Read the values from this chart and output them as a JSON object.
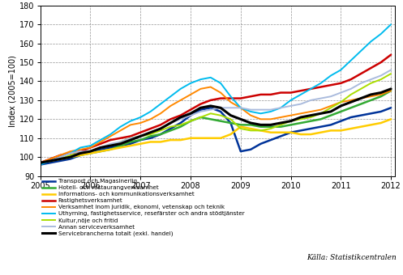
{
  "ylabel": "Index (2005=100)",
  "xlim": [
    2005,
    2012.08
  ],
  "ylim": [
    90,
    180
  ],
  "yticks": [
    90,
    100,
    110,
    120,
    130,
    140,
    150,
    160,
    170,
    180
  ],
  "xticks": [
    2005,
    2006,
    2007,
    2008,
    2009,
    2010,
    2011,
    2012
  ],
  "source_text": "Källa: Statistikcentralen",
  "series": {
    "Transport och Magasinerlig": {
      "color": "#003399",
      "lw": 1.8,
      "x": [
        2005.0,
        2005.2,
        2005.4,
        2005.6,
        2005.8,
        2006.0,
        2006.2,
        2006.4,
        2006.6,
        2006.8,
        2007.0,
        2007.2,
        2007.4,
        2007.6,
        2007.8,
        2008.0,
        2008.2,
        2008.4,
        2008.6,
        2008.8,
        2009.0,
        2009.2,
        2009.4,
        2009.6,
        2009.8,
        2010.0,
        2010.2,
        2010.4,
        2010.6,
        2010.8,
        2011.0,
        2011.2,
        2011.4,
        2011.6,
        2011.8,
        2012.0
      ],
      "y": [
        96,
        97,
        98,
        99,
        101,
        103,
        104,
        105,
        106,
        107,
        109,
        110,
        112,
        115,
        118,
        122,
        125,
        126,
        124,
        118,
        103,
        104,
        107,
        109,
        111,
        113,
        114,
        115,
        116,
        117,
        119,
        121,
        122,
        123,
        124,
        126
      ]
    },
    "Hotell- och restaurangverksamhet": {
      "color": "#33aa33",
      "lw": 1.8,
      "x": [
        2005.0,
        2005.2,
        2005.4,
        2005.6,
        2005.8,
        2006.0,
        2006.2,
        2006.4,
        2006.6,
        2006.8,
        2007.0,
        2007.2,
        2007.4,
        2007.6,
        2007.8,
        2008.0,
        2008.2,
        2008.4,
        2008.6,
        2008.8,
        2009.0,
        2009.2,
        2009.4,
        2009.6,
        2009.8,
        2010.0,
        2010.2,
        2010.4,
        2010.6,
        2010.8,
        2011.0,
        2011.2,
        2011.4,
        2011.6,
        2011.8,
        2012.0
      ],
      "y": [
        97,
        98,
        99,
        100,
        101,
        102,
        103,
        104,
        106,
        108,
        109,
        111,
        112,
        114,
        116,
        119,
        121,
        120,
        119,
        118,
        117,
        117,
        116,
        116,
        116,
        117,
        118,
        119,
        120,
        122,
        124,
        126,
        128,
        130,
        132,
        135
      ]
    },
    "Informations- och kommunikationsverksamhet": {
      "color": "#ffcc00",
      "lw": 1.8,
      "x": [
        2005.0,
        2005.2,
        2005.4,
        2005.6,
        2005.8,
        2006.0,
        2006.2,
        2006.4,
        2006.6,
        2006.8,
        2007.0,
        2007.2,
        2007.4,
        2007.6,
        2007.8,
        2008.0,
        2008.2,
        2008.4,
        2008.6,
        2008.8,
        2009.0,
        2009.2,
        2009.4,
        2009.6,
        2009.8,
        2010.0,
        2010.2,
        2010.4,
        2010.6,
        2010.8,
        2011.0,
        2011.2,
        2011.4,
        2011.6,
        2011.8,
        2012.0
      ],
      "y": [
        97,
        98,
        99,
        100,
        101,
        102,
        103,
        104,
        105,
        106,
        107,
        108,
        108,
        109,
        109,
        110,
        110,
        110,
        110,
        112,
        116,
        115,
        114,
        113,
        113,
        113,
        112,
        112,
        113,
        114,
        114,
        115,
        116,
        117,
        118,
        120
      ]
    },
    "Fastighetsverksamhet": {
      "color": "#cc0000",
      "lw": 1.8,
      "x": [
        2005.0,
        2005.2,
        2005.4,
        2005.6,
        2005.8,
        2006.0,
        2006.2,
        2006.4,
        2006.6,
        2006.8,
        2007.0,
        2007.2,
        2007.4,
        2007.6,
        2007.8,
        2008.0,
        2008.2,
        2008.4,
        2008.6,
        2008.8,
        2009.0,
        2009.2,
        2009.4,
        2009.6,
        2009.8,
        2010.0,
        2010.2,
        2010.4,
        2010.6,
        2010.8,
        2011.0,
        2011.2,
        2011.4,
        2011.6,
        2011.8,
        2012.0
      ],
      "y": [
        97,
        99,
        101,
        102,
        103,
        105,
        107,
        109,
        110,
        111,
        113,
        115,
        117,
        120,
        122,
        125,
        128,
        130,
        131,
        131,
        131,
        132,
        133,
        133,
        134,
        134,
        135,
        136,
        137,
        138,
        139,
        141,
        144,
        147,
        150,
        154
      ]
    },
    "Verksamhet inom juridik, ekonomi, vetenskap och teknik": {
      "color": "#ff8800",
      "lw": 1.4,
      "x": [
        2005.0,
        2005.2,
        2005.4,
        2005.6,
        2005.8,
        2006.0,
        2006.2,
        2006.4,
        2006.6,
        2006.8,
        2007.0,
        2007.2,
        2007.4,
        2007.6,
        2007.8,
        2008.0,
        2008.2,
        2008.4,
        2008.6,
        2008.8,
        2009.0,
        2009.2,
        2009.4,
        2009.6,
        2009.8,
        2010.0,
        2010.2,
        2010.4,
        2010.6,
        2010.8,
        2011.0,
        2011.2,
        2011.4,
        2011.6,
        2011.8,
        2012.0
      ],
      "y": [
        97,
        99,
        101,
        103,
        104,
        105,
        108,
        111,
        114,
        117,
        118,
        120,
        123,
        127,
        130,
        133,
        136,
        137,
        134,
        129,
        126,
        122,
        120,
        120,
        121,
        122,
        123,
        124,
        125,
        127,
        129,
        130,
        131,
        132,
        133,
        135
      ]
    },
    "Uthyrning, fastighetsservice, resefärster och andra stödtjänster": {
      "color": "#00bbee",
      "lw": 1.4,
      "x": [
        2005.0,
        2005.2,
        2005.4,
        2005.6,
        2005.8,
        2006.0,
        2006.2,
        2006.4,
        2006.6,
        2006.8,
        2007.0,
        2007.2,
        2007.4,
        2007.6,
        2007.8,
        2008.0,
        2008.2,
        2008.4,
        2008.6,
        2008.8,
        2009.0,
        2009.2,
        2009.4,
        2009.6,
        2009.8,
        2010.0,
        2010.2,
        2010.4,
        2010.6,
        2010.8,
        2011.0,
        2011.2,
        2011.4,
        2011.6,
        2011.8,
        2012.0
      ],
      "y": [
        96,
        98,
        100,
        102,
        105,
        106,
        109,
        112,
        116,
        119,
        121,
        124,
        128,
        132,
        136,
        139,
        141,
        142,
        139,
        132,
        126,
        124,
        123,
        124,
        126,
        130,
        133,
        136,
        139,
        143,
        146,
        151,
        156,
        161,
        165,
        170
      ]
    },
    "Kultur,nöje och fritid": {
      "color": "#aadd00",
      "lw": 1.4,
      "x": [
        2005.0,
        2005.2,
        2005.4,
        2005.6,
        2005.8,
        2006.0,
        2006.2,
        2006.4,
        2006.6,
        2006.8,
        2007.0,
        2007.2,
        2007.4,
        2007.6,
        2007.8,
        2008.0,
        2008.2,
        2008.4,
        2008.6,
        2008.8,
        2009.0,
        2009.2,
        2009.4,
        2009.6,
        2009.8,
        2010.0,
        2010.2,
        2010.4,
        2010.6,
        2010.8,
        2011.0,
        2011.2,
        2011.4,
        2011.6,
        2011.8,
        2012.0
      ],
      "y": [
        97,
        98,
        99,
        101,
        102,
        103,
        105,
        106,
        108,
        110,
        111,
        112,
        114,
        116,
        117,
        119,
        121,
        123,
        122,
        120,
        115,
        114,
        114,
        115,
        117,
        119,
        120,
        121,
        123,
        126,
        129,
        133,
        136,
        139,
        141,
        144
      ]
    },
    "Annan serviceverksamhet": {
      "color": "#aabbdd",
      "lw": 1.4,
      "x": [
        2005.0,
        2005.2,
        2005.4,
        2005.6,
        2005.8,
        2006.0,
        2006.2,
        2006.4,
        2006.6,
        2006.8,
        2007.0,
        2007.2,
        2007.4,
        2007.6,
        2007.8,
        2008.0,
        2008.2,
        2008.4,
        2008.6,
        2008.8,
        2009.0,
        2009.2,
        2009.4,
        2009.6,
        2009.8,
        2010.0,
        2010.2,
        2010.4,
        2010.6,
        2010.8,
        2011.0,
        2011.2,
        2011.4,
        2011.6,
        2011.8,
        2012.0
      ],
      "y": [
        97,
        98,
        100,
        102,
        103,
        103,
        105,
        107,
        108,
        110,
        111,
        113,
        115,
        118,
        120,
        122,
        124,
        125,
        126,
        126,
        126,
        125,
        125,
        125,
        126,
        127,
        128,
        130,
        131,
        132,
        134,
        136,
        139,
        141,
        143,
        146
      ]
    },
    "Servicebrancherna totalt (exkl. handel)": {
      "color": "#000000",
      "lw": 2.2,
      "x": [
        2005.0,
        2005.2,
        2005.4,
        2005.6,
        2005.8,
        2006.0,
        2006.2,
        2006.4,
        2006.6,
        2006.8,
        2007.0,
        2007.2,
        2007.4,
        2007.6,
        2007.8,
        2008.0,
        2008.2,
        2008.4,
        2008.6,
        2008.8,
        2009.0,
        2009.2,
        2009.4,
        2009.6,
        2009.8,
        2010.0,
        2010.2,
        2010.4,
        2010.6,
        2010.8,
        2011.0,
        2011.2,
        2011.4,
        2011.6,
        2011.8,
        2012.0
      ],
      "y": [
        97,
        98,
        99,
        100,
        102,
        103,
        105,
        106,
        107,
        109,
        111,
        113,
        115,
        118,
        121,
        123,
        126,
        127,
        126,
        122,
        120,
        118,
        117,
        117,
        118,
        119,
        121,
        122,
        123,
        124,
        127,
        129,
        131,
        133,
        134,
        136
      ]
    }
  },
  "legend_order": [
    "Transport och Magasinerlig",
    "Hotell- och restaurangverksamhet",
    "Informations- och kommunikationsverksamhet",
    "Fastighetsverksamhet",
    "Verksamhet inom juridik, ekonomi, vetenskap och teknik",
    "Uthyrning, fastighetsservice, resefärster och andra stödtjänster",
    "Kultur,nöje och fritid",
    "Annan serviceverksamhet",
    "Servicebrancherna totalt (exkl. handel)"
  ],
  "fig_width": 4.97,
  "fig_height": 3.4,
  "dpi": 100
}
